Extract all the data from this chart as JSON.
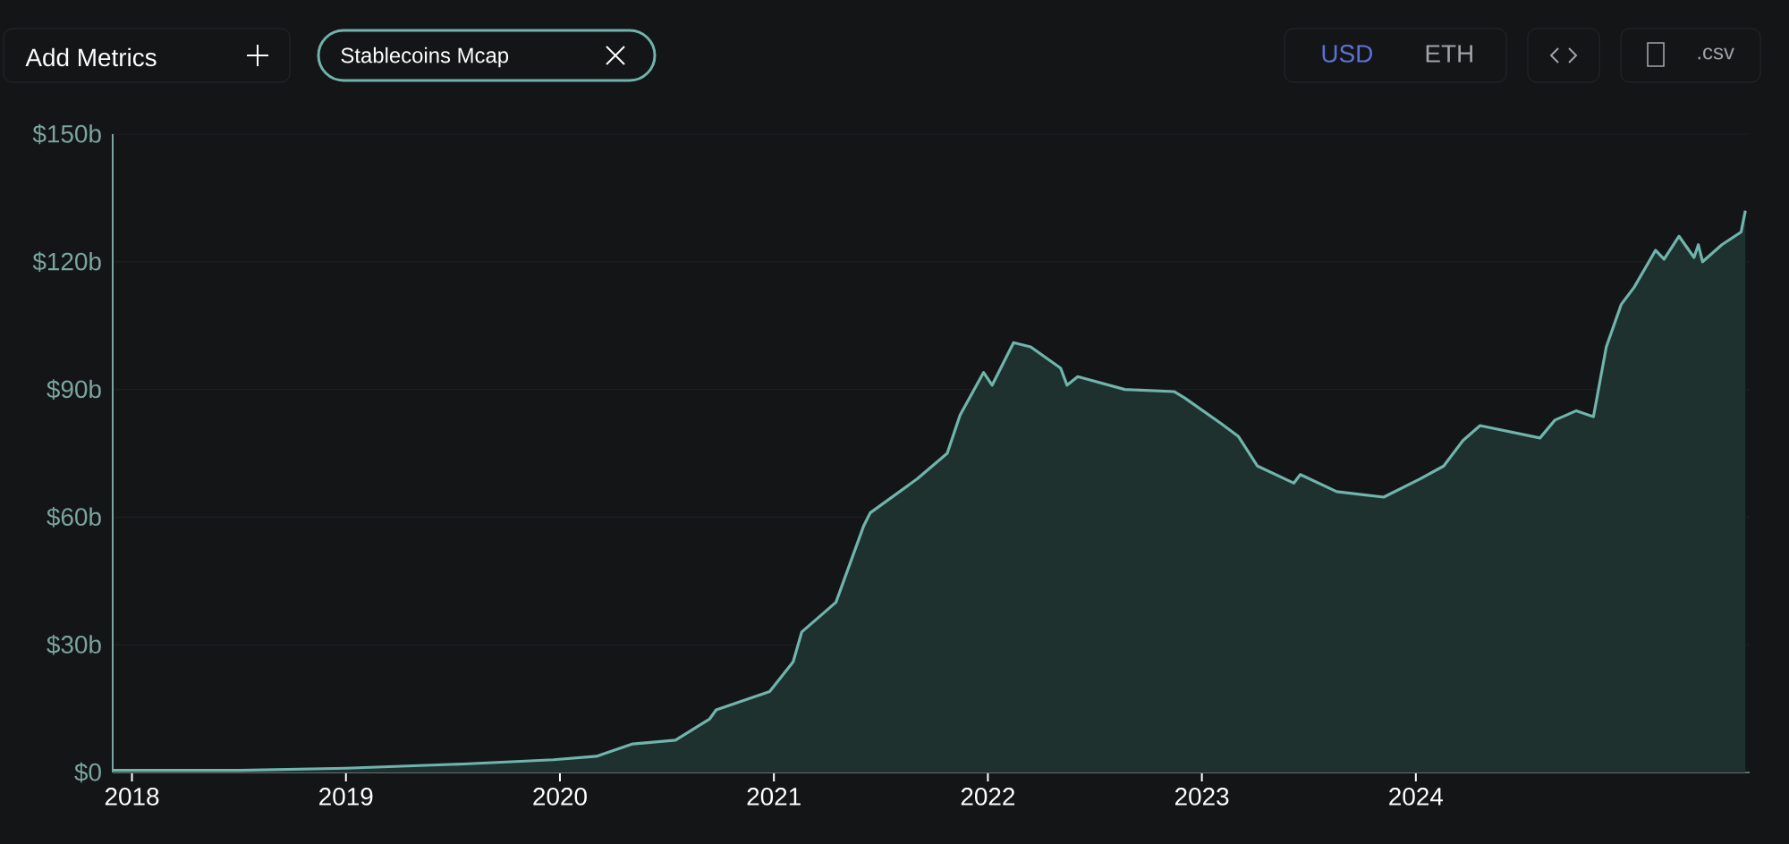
{
  "chart_data": {
    "type": "area",
    "annotations": [
      "Add Metrics",
      "Stablecoins Mcap",
      "USD",
      "ETH",
      ".csv"
    ],
    "x": [
      2017.91,
      2018.5,
      2019.0,
      2019.55,
      2019.97,
      2020.17,
      2020.34,
      2020.54,
      2020.7,
      2020.73,
      2020.98,
      2021.09,
      2021.13,
      2021.29,
      2021.42,
      2021.45,
      2021.67,
      2021.81,
      2021.87,
      2021.98,
      2022.02,
      2022.12,
      2022.2,
      2022.34,
      2022.37,
      2022.42,
      2022.64,
      2022.87,
      2022.92,
      2023.09,
      2023.17,
      2023.26,
      2023.43,
      2023.46,
      2023.63,
      2023.85,
      2024.02,
      2024.13,
      2024.22,
      2024.3,
      2024.58,
      2024.65,
      2024.75,
      2024.83,
      2024.89,
      2024.96,
      2025.02,
      2025.12,
      2025.16,
      2025.23,
      2025.3,
      2025.32,
      2025.34,
      2025.43,
      2025.52,
      2025.54
    ],
    "series": [
      {
        "color": "#6fb5ac",
        "values": [
          0.5,
          0.5,
          1,
          2,
          3,
          3.8,
          6.7,
          7.6,
          12.6,
          14.7,
          19,
          26,
          33,
          40,
          58,
          61,
          69,
          75,
          84,
          94,
          91,
          101,
          100,
          95,
          91,
          93,
          90,
          89.5,
          88,
          82,
          79,
          72,
          68,
          70,
          66,
          64.7,
          69,
          72,
          78,
          81.5,
          78.6,
          82.8,
          85,
          83.6,
          100,
          110,
          114,
          122.7,
          120.6,
          126,
          121,
          124,
          120,
          124,
          127,
          132
        ]
      }
    ],
    "xlim": [
      2017.91,
      2025.56
    ],
    "xticks": [
      2018,
      2019,
      2020,
      2021,
      2022,
      2023,
      2024
    ],
    "ylim": [
      0,
      150
    ],
    "yticks": [
      {
        "value": 0,
        "label": "$0"
      },
      {
        "value": 30,
        "label": "$30b"
      },
      {
        "value": 60,
        "label": "$60b"
      },
      {
        "value": 90,
        "label": "$90b"
      },
      {
        "value": 120,
        "label": "$120b"
      },
      {
        "value": 150,
        "label": "$150b"
      }
    ],
    "grid": "y"
  }
}
